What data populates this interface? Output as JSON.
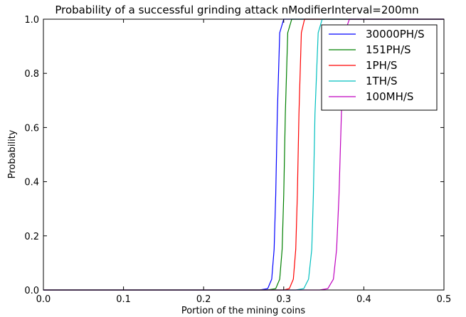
{
  "chart_data": {
    "type": "line",
    "title": "Probability of a successful grinding attack nModifierInterval=200mn",
    "xlabel": "Portion of the mining coins",
    "ylabel": "Probability",
    "xlim": [
      0.0,
      0.5
    ],
    "ylim": [
      0.0,
      1.0
    ],
    "xticks": [
      "0.0",
      "0.1",
      "0.2",
      "0.3",
      "0.4",
      "0.5"
    ],
    "yticks": [
      "0.0",
      "0.2",
      "0.4",
      "0.6",
      "0.8",
      "1.0"
    ],
    "grid": false,
    "legend_position": "top-right",
    "series": [
      {
        "name": "30000PH/S",
        "color": "#0000ff",
        "x": [
          0.0,
          0.27,
          0.28,
          0.285,
          0.288,
          0.29,
          0.292,
          0.295,
          0.3,
          0.5
        ],
        "y": [
          0.0,
          0.0,
          0.005,
          0.04,
          0.15,
          0.35,
          0.65,
          0.95,
          1.0,
          1.0
        ]
      },
      {
        "name": "151PH/S",
        "color": "#008000",
        "x": [
          0.0,
          0.28,
          0.29,
          0.295,
          0.298,
          0.3,
          0.302,
          0.305,
          0.31,
          0.5
        ],
        "y": [
          0.0,
          0.0,
          0.005,
          0.04,
          0.15,
          0.35,
          0.65,
          0.95,
          1.0,
          1.0
        ]
      },
      {
        "name": "1PH/S",
        "color": "#ff0000",
        "x": [
          0.0,
          0.3,
          0.307,
          0.312,
          0.315,
          0.317,
          0.319,
          0.322,
          0.326,
          0.5
        ],
        "y": [
          0.0,
          0.0,
          0.005,
          0.04,
          0.15,
          0.35,
          0.65,
          0.95,
          1.0,
          1.0
        ]
      },
      {
        "name": "1TH/S",
        "color": "#00bfbf",
        "x": [
          0.0,
          0.315,
          0.325,
          0.331,
          0.335,
          0.337,
          0.339,
          0.343,
          0.348,
          0.5
        ],
        "y": [
          0.0,
          0.0,
          0.005,
          0.04,
          0.15,
          0.35,
          0.65,
          0.95,
          1.0,
          1.0
        ]
      },
      {
        "name": "100MH/S",
        "color": "#bf00bf",
        "x": [
          0.0,
          0.345,
          0.355,
          0.362,
          0.366,
          0.369,
          0.372,
          0.376,
          0.382,
          0.5
        ],
        "y": [
          0.0,
          0.0,
          0.005,
          0.04,
          0.15,
          0.35,
          0.65,
          0.95,
          1.0,
          1.0
        ]
      }
    ]
  }
}
